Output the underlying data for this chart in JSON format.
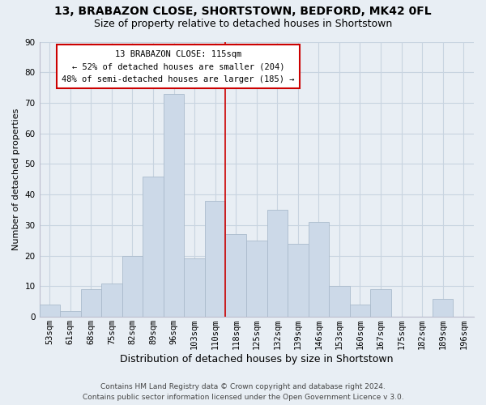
{
  "title": "13, BRABAZON CLOSE, SHORTSTOWN, BEDFORD, MK42 0FL",
  "subtitle": "Size of property relative to detached houses in Shortstown",
  "xlabel": "Distribution of detached houses by size in Shortstown",
  "ylabel": "Number of detached properties",
  "footer_line1": "Contains HM Land Registry data © Crown copyright and database right 2024.",
  "footer_line2": "Contains public sector information licensed under the Open Government Licence v 3.0.",
  "bin_labels": [
    "53sqm",
    "61sqm",
    "68sqm",
    "75sqm",
    "82sqm",
    "89sqm",
    "96sqm",
    "103sqm",
    "110sqm",
    "118sqm",
    "125sqm",
    "132sqm",
    "139sqm",
    "146sqm",
    "153sqm",
    "160sqm",
    "167sqm",
    "175sqm",
    "182sqm",
    "189sqm",
    "196sqm"
  ],
  "bar_values": [
    4,
    2,
    9,
    11,
    20,
    46,
    73,
    19,
    38,
    27,
    25,
    35,
    24,
    31,
    10,
    4,
    9,
    0,
    0,
    6,
    0
  ],
  "bar_color": "#ccd9e8",
  "bar_edge_color": "#aabbcc",
  "vline_color": "#cc0000",
  "annotation_title": "13 BRABAZON CLOSE: 115sqm",
  "annotation_line1": "← 52% of detached houses are smaller (204)",
  "annotation_line2": "48% of semi-detached houses are larger (185) →",
  "annotation_box_color": "#ffffff",
  "annotation_box_edge": "#cc0000",
  "ylim": [
    0,
    90
  ],
  "yticks": [
    0,
    10,
    20,
    30,
    40,
    50,
    60,
    70,
    80,
    90
  ],
  "grid_color": "#c8d4e0",
  "background_color": "#e8eef4",
  "title_fontsize": 10,
  "subtitle_fontsize": 9,
  "tick_fontsize": 7.5,
  "ylabel_fontsize": 8,
  "xlabel_fontsize": 9,
  "footer_fontsize": 6.5
}
